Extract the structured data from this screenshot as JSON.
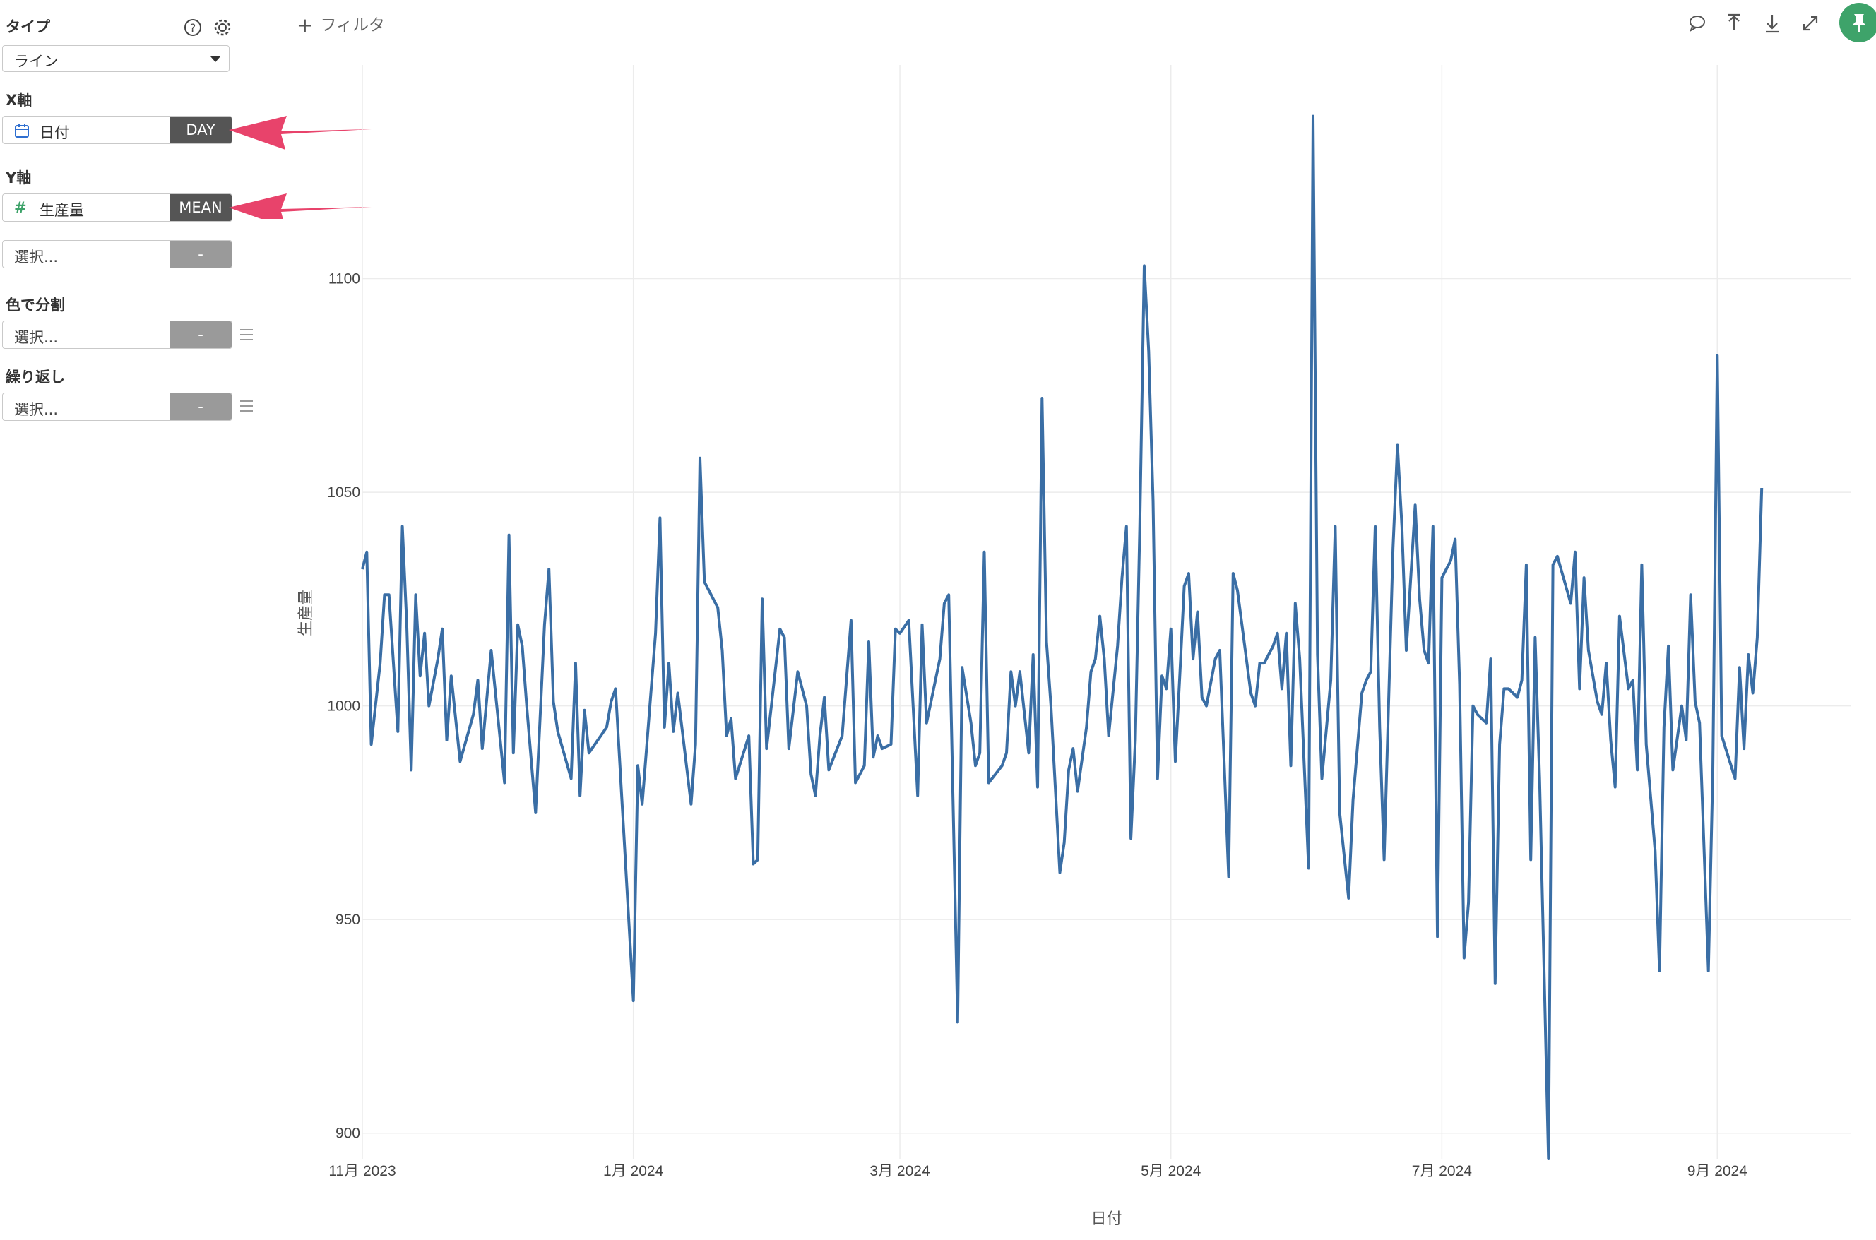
{
  "sidebar": {
    "type_label": "タイプ",
    "type_value": "ライン",
    "x_label": "X軸",
    "x_field": "日付",
    "x_agg": "DAY",
    "y_label": "Y軸",
    "y_field": "生産量",
    "y_agg": "MEAN",
    "y2_placeholder": "選択...",
    "y2_agg": "-",
    "color_label": "色で分割",
    "color_placeholder": "選択...",
    "color_agg": "-",
    "repeat_label": "繰り返し",
    "repeat_placeholder": "選択...",
    "repeat_agg": "-"
  },
  "toolbar": {
    "filter_label": "フィルタ",
    "icons": [
      "comment-icon",
      "upload-icon",
      "download-icon",
      "expand-icon",
      "pin-icon"
    ]
  },
  "colors": {
    "line": "#3a6ea5",
    "arrow": "#e8436b",
    "pin": "#3ea36a"
  },
  "chart_data": {
    "type": "line",
    "xlabel": "日付",
    "ylabel": "生産量",
    "x_tick_labels": [
      "11月 2023",
      "1月 2024",
      "3月 2024",
      "5月 2024",
      "7月 2024",
      "9月 2024"
    ],
    "y_ticks": [
      900,
      950,
      1000,
      1050,
      1100
    ],
    "ylim": [
      894,
      1150
    ],
    "xlim": [
      "2023-11-01",
      "2024-10-01"
    ],
    "grid": true,
    "series": [
      {
        "values": [
          [
            0,
            1032
          ],
          [
            1,
            1036
          ],
          [
            2,
            991
          ],
          [
            4,
            1010
          ],
          [
            5,
            1026
          ],
          [
            6,
            1026
          ],
          [
            8,
            994
          ],
          [
            9,
            1042
          ],
          [
            10,
            1019
          ],
          [
            11,
            985
          ],
          [
            12,
            1026
          ],
          [
            13,
            1007
          ],
          [
            14,
            1017
          ],
          [
            15,
            1000
          ],
          [
            17,
            1011
          ],
          [
            18,
            1018
          ],
          [
            19,
            992
          ],
          [
            20,
            1007
          ],
          [
            22,
            987
          ],
          [
            25,
            998
          ],
          [
            26,
            1006
          ],
          [
            27,
            990
          ],
          [
            29,
            1013
          ],
          [
            32,
            982
          ],
          [
            33,
            1040
          ],
          [
            34,
            989
          ],
          [
            35,
            1019
          ],
          [
            36,
            1014
          ],
          [
            37,
            1000
          ],
          [
            39,
            975
          ],
          [
            41,
            1019
          ],
          [
            42,
            1032
          ],
          [
            43,
            1001
          ],
          [
            44,
            994
          ],
          [
            47,
            983
          ],
          [
            48,
            1010
          ],
          [
            49,
            979
          ],
          [
            50,
            999
          ],
          [
            51,
            989
          ],
          [
            55,
            995
          ],
          [
            56,
            1001
          ],
          [
            57,
            1004
          ],
          [
            61,
            931
          ],
          [
            62,
            986
          ],
          [
            63,
            977
          ],
          [
            66,
            1017
          ],
          [
            67,
            1044
          ],
          [
            68,
            995
          ],
          [
            69,
            1010
          ],
          [
            70,
            994
          ],
          [
            71,
            1003
          ],
          [
            74,
            977
          ],
          [
            75,
            991
          ],
          [
            76,
            1058
          ],
          [
            77,
            1029
          ],
          [
            80,
            1023
          ],
          [
            81,
            1013
          ],
          [
            82,
            993
          ],
          [
            83,
            997
          ],
          [
            84,
            983
          ],
          [
            87,
            993
          ],
          [
            88,
            963
          ],
          [
            89,
            964
          ],
          [
            90,
            1025
          ],
          [
            91,
            990
          ],
          [
            94,
            1018
          ],
          [
            95,
            1016
          ],
          [
            96,
            990
          ],
          [
            98,
            1008
          ],
          [
            100,
            1000
          ],
          [
            101,
            984
          ],
          [
            102,
            979
          ],
          [
            103,
            993
          ],
          [
            104,
            1002
          ],
          [
            105,
            985
          ],
          [
            108,
            993
          ],
          [
            110,
            1020
          ],
          [
            111,
            982
          ],
          [
            113,
            986
          ],
          [
            114,
            1015
          ],
          [
            115,
            988
          ],
          [
            116,
            993
          ],
          [
            117,
            990
          ],
          [
            119,
            991
          ],
          [
            120,
            1018
          ],
          [
            121,
            1017
          ],
          [
            123,
            1020
          ],
          [
            125,
            979
          ],
          [
            126,
            1019
          ],
          [
            127,
            996
          ],
          [
            130,
            1011
          ],
          [
            131,
            1024
          ],
          [
            132,
            1026
          ],
          [
            134,
            926
          ],
          [
            135,
            1009
          ],
          [
            137,
            996
          ],
          [
            138,
            986
          ],
          [
            139,
            989
          ],
          [
            140,
            1036
          ],
          [
            141,
            982
          ],
          [
            144,
            986
          ],
          [
            145,
            989
          ],
          [
            146,
            1008
          ],
          [
            147,
            1000
          ],
          [
            148,
            1008
          ],
          [
            150,
            989
          ],
          [
            151,
            1012
          ],
          [
            152,
            981
          ],
          [
            153,
            1072
          ],
          [
            154,
            1015
          ],
          [
            155,
            1000
          ],
          [
            157,
            961
          ],
          [
            158,
            968
          ],
          [
            159,
            985
          ],
          [
            160,
            990
          ],
          [
            161,
            980
          ],
          [
            163,
            995
          ],
          [
            164,
            1008
          ],
          [
            165,
            1011
          ],
          [
            166,
            1021
          ],
          [
            167,
            1011
          ],
          [
            168,
            993
          ],
          [
            170,
            1014
          ],
          [
            171,
            1030
          ],
          [
            172,
            1042
          ],
          [
            173,
            969
          ],
          [
            174,
            992
          ],
          [
            175,
            1042
          ],
          [
            176,
            1103
          ],
          [
            177,
            1083
          ],
          [
            178,
            1048
          ],
          [
            179,
            983
          ],
          [
            180,
            1007
          ],
          [
            181,
            1004
          ],
          [
            182,
            1018
          ],
          [
            183,
            987
          ],
          [
            184,
            1007
          ],
          [
            185,
            1028
          ],
          [
            186,
            1031
          ],
          [
            187,
            1011
          ],
          [
            188,
            1022
          ],
          [
            189,
            1002
          ],
          [
            190,
            1000
          ],
          [
            192,
            1011
          ],
          [
            193,
            1013
          ],
          [
            195,
            960
          ],
          [
            196,
            1031
          ],
          [
            197,
            1027
          ],
          [
            200,
            1003
          ],
          [
            201,
            1000
          ],
          [
            202,
            1010
          ],
          [
            203,
            1010
          ],
          [
            205,
            1014
          ],
          [
            206,
            1017
          ],
          [
            207,
            1004
          ],
          [
            208,
            1017
          ],
          [
            209,
            986
          ],
          [
            210,
            1024
          ],
          [
            211,
            1011
          ],
          [
            213,
            962
          ],
          [
            214,
            1138
          ],
          [
            215,
            1012
          ],
          [
            216,
            983
          ],
          [
            218,
            1006
          ],
          [
            219,
            1042
          ],
          [
            220,
            975
          ],
          [
            222,
            955
          ],
          [
            223,
            978
          ],
          [
            225,
            1003
          ],
          [
            226,
            1006
          ],
          [
            227,
            1008
          ],
          [
            228,
            1042
          ],
          [
            229,
            995
          ],
          [
            230,
            964
          ],
          [
            232,
            1037
          ],
          [
            233,
            1061
          ],
          [
            234,
            1042
          ],
          [
            235,
            1013
          ],
          [
            237,
            1047
          ],
          [
            238,
            1025
          ],
          [
            239,
            1013
          ],
          [
            240,
            1010
          ],
          [
            241,
            1042
          ],
          [
            242,
            946
          ],
          [
            243,
            1030
          ],
          [
            245,
            1034
          ],
          [
            246,
            1039
          ],
          [
            247,
            1005
          ],
          [
            248,
            941
          ],
          [
            249,
            954
          ],
          [
            250,
            1000
          ],
          [
            251,
            998
          ],
          [
            253,
            996
          ],
          [
            254,
            1011
          ],
          [
            255,
            935
          ],
          [
            256,
            991
          ],
          [
            257,
            1004
          ],
          [
            258,
            1004
          ],
          [
            260,
            1002
          ],
          [
            261,
            1006
          ],
          [
            262,
            1033
          ],
          [
            263,
            964
          ],
          [
            264,
            1016
          ],
          [
            265,
            983
          ],
          [
            267,
            894
          ],
          [
            268,
            1033
          ],
          [
            269,
            1035
          ],
          [
            272,
            1024
          ],
          [
            273,
            1036
          ],
          [
            274,
            1004
          ],
          [
            275,
            1030
          ],
          [
            276,
            1013
          ],
          [
            278,
            1001
          ],
          [
            279,
            998
          ],
          [
            280,
            1010
          ],
          [
            281,
            992
          ],
          [
            282,
            981
          ],
          [
            283,
            1021
          ],
          [
            285,
            1004
          ],
          [
            286,
            1006
          ],
          [
            287,
            985
          ],
          [
            288,
            1033
          ],
          [
            289,
            991
          ],
          [
            291,
            966
          ],
          [
            292,
            938
          ],
          [
            293,
            995
          ],
          [
            294,
            1014
          ],
          [
            295,
            985
          ],
          [
            297,
            1000
          ],
          [
            298,
            992
          ],
          [
            299,
            1026
          ],
          [
            300,
            1001
          ],
          [
            301,
            996
          ],
          [
            303,
            938
          ],
          [
            304,
            985
          ],
          [
            305,
            1082
          ],
          [
            306,
            993
          ],
          [
            309,
            983
          ],
          [
            310,
            1009
          ],
          [
            311,
            990
          ],
          [
            312,
            1012
          ],
          [
            313,
            1003
          ],
          [
            314,
            1016
          ],
          [
            315,
            1051
          ]
        ]
      }
    ]
  }
}
